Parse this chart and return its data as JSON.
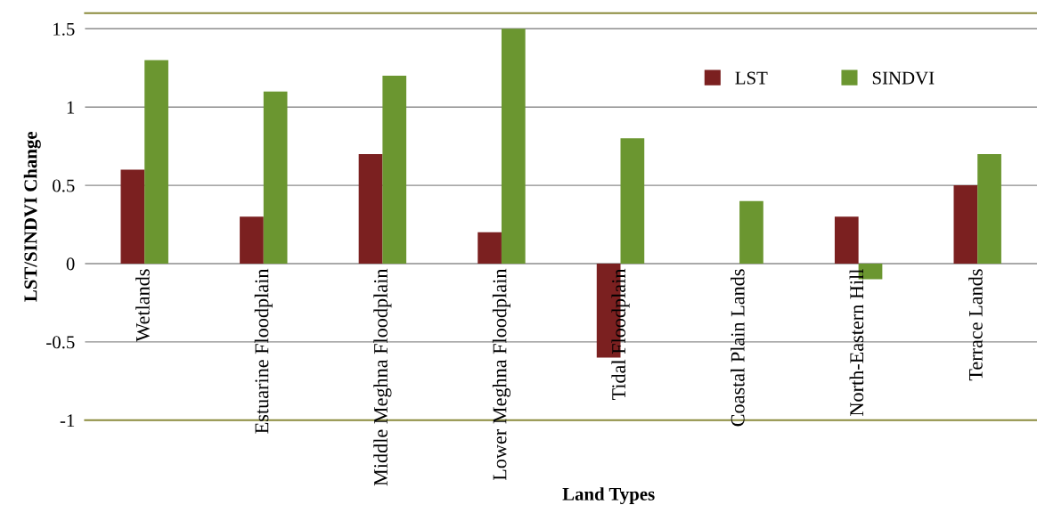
{
  "chart_data": {
    "type": "bar",
    "xlabel": "Land Types",
    "ylabel": "LST/SINDVI Change",
    "categories": [
      "Wetlands",
      "Estuarine Floodplain",
      "Middle Meghna Floodplain",
      "Lower Meghna Floodplain",
      "Tidal Floodplain",
      "Coastal Plain Lands",
      "North-Eastern Hill",
      "Terrace Lands"
    ],
    "series": [
      {
        "name": "LST",
        "color": "#7b2020",
        "values": [
          0.6,
          0.3,
          0.7,
          0.2,
          -0.6,
          0,
          0.3,
          0.5
        ]
      },
      {
        "name": "SINDVI",
        "color": "#6b9630",
        "values": [
          1.3,
          1.1,
          1.2,
          1.5,
          0.8,
          0.4,
          -0.1,
          0.7
        ]
      }
    ],
    "ylim": [
      -1,
      1.6
    ],
    "yticks": [
      -1,
      -0.5,
      0,
      0.5,
      1,
      1.5
    ],
    "grid": "y",
    "legend": "top right"
  }
}
